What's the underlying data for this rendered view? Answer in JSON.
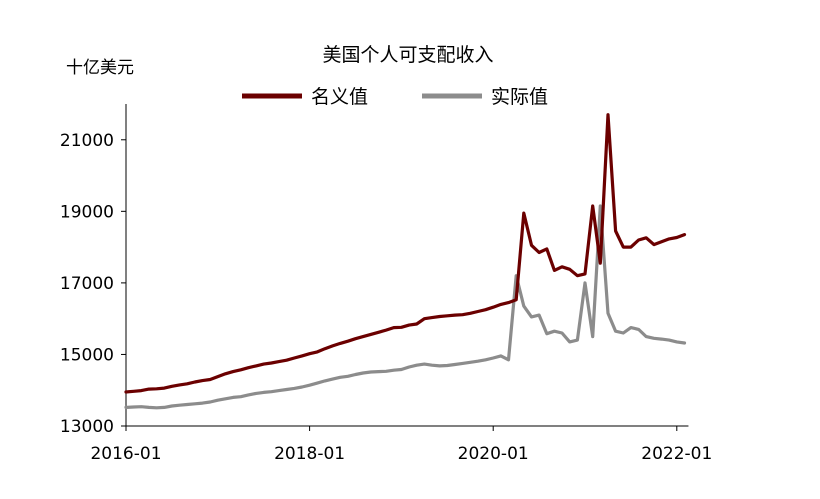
{
  "chart_data": {
    "type": "line",
    "title": "美国个人可支配收入",
    "ylabel": "十亿美元",
    "ylim": [
      13000,
      22000
    ],
    "yticks": [
      "13000",
      "15000",
      "17000",
      "19000",
      "21000"
    ],
    "xticks": [
      "2016-01",
      "2018-01",
      "2020-01",
      "2022-01"
    ],
    "legend": {
      "position": "top-center"
    },
    "grid": false,
    "x": [
      "2016-01",
      "2016-02",
      "2016-03",
      "2016-04",
      "2016-05",
      "2016-06",
      "2016-07",
      "2016-08",
      "2016-09",
      "2016-10",
      "2016-11",
      "2016-12",
      "2017-01",
      "2017-02",
      "2017-03",
      "2017-04",
      "2017-05",
      "2017-06",
      "2017-07",
      "2017-08",
      "2017-09",
      "2017-10",
      "2017-11",
      "2017-12",
      "2018-01",
      "2018-02",
      "2018-03",
      "2018-04",
      "2018-05",
      "2018-06",
      "2018-07",
      "2018-08",
      "2018-09",
      "2018-10",
      "2018-11",
      "2018-12",
      "2019-01",
      "2019-02",
      "2019-03",
      "2019-04",
      "2019-05",
      "2019-06",
      "2019-07",
      "2019-08",
      "2019-09",
      "2019-10",
      "2019-11",
      "2019-12",
      "2020-01",
      "2020-02",
      "2020-03",
      "2020-04",
      "2020-05",
      "2020-06",
      "2020-07",
      "2020-08",
      "2020-09",
      "2020-10",
      "2020-11",
      "2020-12",
      "2021-01",
      "2021-02",
      "2021-03",
      "2021-04",
      "2021-05",
      "2021-06",
      "2021-07",
      "2021-08",
      "2021-09",
      "2021-10",
      "2021-11",
      "2021-12",
      "2022-01",
      "2022-02"
    ],
    "series": [
      {
        "name": "名义值",
        "color": "#6b0000",
        "values": [
          13950,
          13970,
          13990,
          14030,
          14040,
          14060,
          14110,
          14150,
          14180,
          14230,
          14270,
          14300,
          14380,
          14460,
          14520,
          14570,
          14630,
          14680,
          14730,
          14760,
          14800,
          14840,
          14900,
          14960,
          15020,
          15070,
          15160,
          15240,
          15310,
          15370,
          15440,
          15500,
          15560,
          15620,
          15680,
          15750,
          15760,
          15820,
          15850,
          16000,
          16030,
          16060,
          16080,
          16100,
          16110,
          16150,
          16200,
          16250,
          16320,
          16400,
          16450,
          16530,
          18950,
          18050,
          17850,
          17950,
          17350,
          17450,
          17380,
          17200,
          17250,
          19150,
          17550,
          21700,
          18450,
          18000,
          18000,
          18200,
          18260,
          18070,
          18150,
          18230,
          18270,
          18350
        ]
      },
      {
        "name": "实际值",
        "color": "#8c8c8c",
        "values": [
          13520,
          13530,
          13540,
          13520,
          13510,
          13520,
          13560,
          13580,
          13600,
          13620,
          13640,
          13670,
          13720,
          13760,
          13800,
          13820,
          13870,
          13910,
          13940,
          13960,
          13990,
          14020,
          14050,
          14090,
          14140,
          14200,
          14260,
          14310,
          14360,
          14390,
          14440,
          14480,
          14510,
          14520,
          14530,
          14560,
          14580,
          14650,
          14700,
          14730,
          14700,
          14680,
          14690,
          14720,
          14750,
          14780,
          14810,
          14850,
          14900,
          14960,
          14850,
          17200,
          16350,
          16050,
          16100,
          15580,
          15650,
          15600,
          15350,
          15400,
          17000,
          15500,
          19150,
          16150,
          15650,
          15600,
          15750,
          15700,
          15500,
          15450,
          15430,
          15400,
          15350,
          15320
        ]
      }
    ]
  }
}
